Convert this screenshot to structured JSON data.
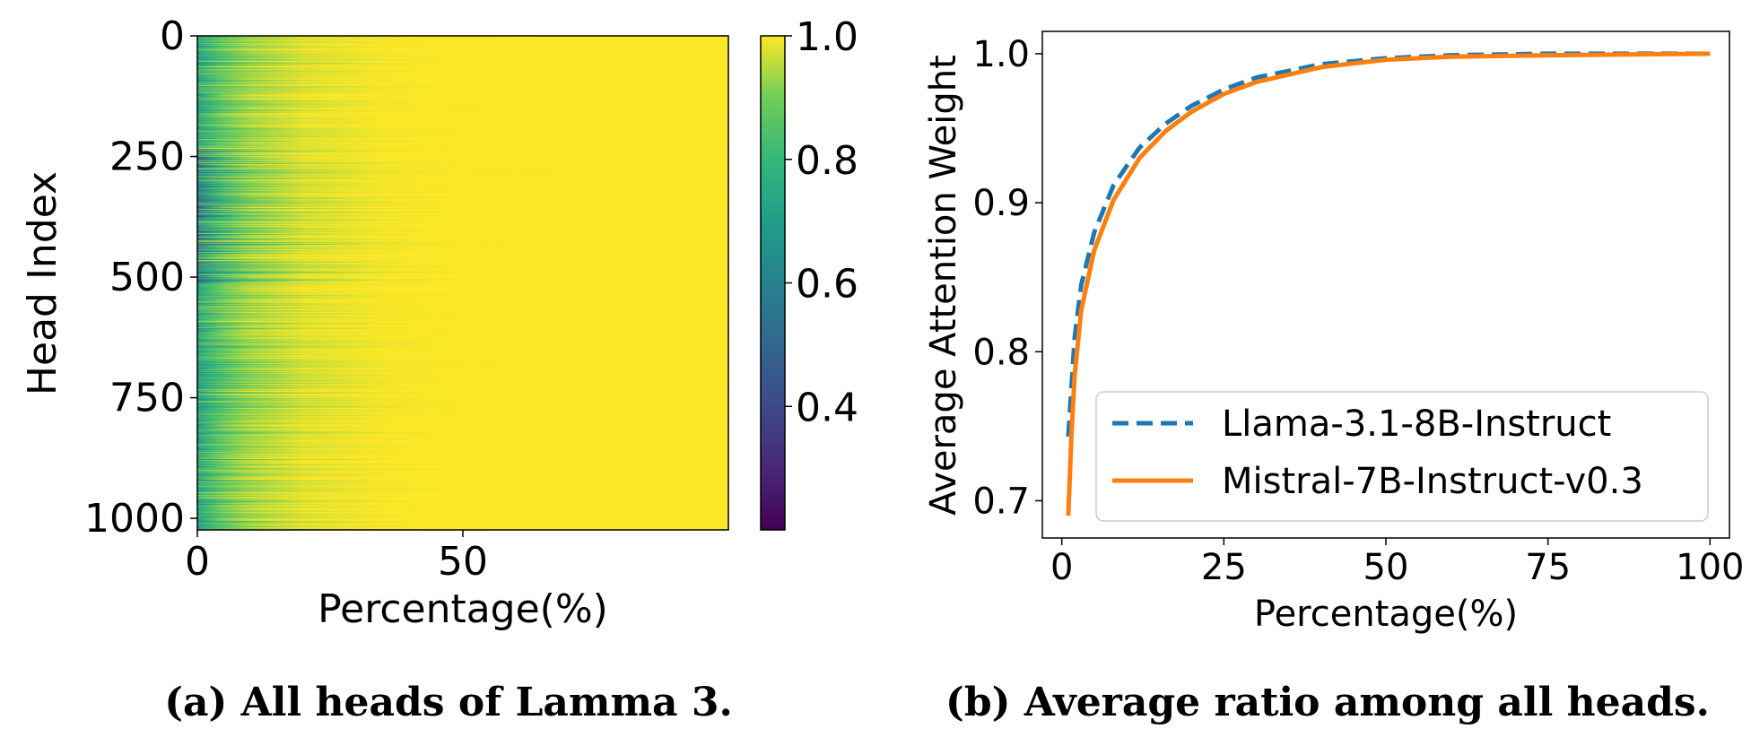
{
  "chart_data": [
    {
      "type": "heatmap",
      "caption": "(a) All heads of Lamma 3.",
      "title": "",
      "xlabel": "Percentage(%)",
      "ylabel": "Head Index",
      "xlim": [
        0,
        100
      ],
      "ylim": [
        1024,
        0
      ],
      "x_ticks": [
        0,
        50
      ],
      "y_ticks": [
        0,
        250,
        500,
        750,
        1000
      ],
      "rows": 1024,
      "colorbar": {
        "min": 0.2,
        "max": 1.0,
        "ticks": [
          "1.0",
          "0.8",
          "0.6",
          "0.4"
        ],
        "colormap": "viridis"
      },
      "head_profile": {
        "description_free_params": true,
        "typical_start_value": 0.72,
        "min_start_value": 0.35,
        "saturation_percentage": [
          8,
          40
        ]
      }
    },
    {
      "type": "line",
      "caption": "(b) Average ratio among all heads.",
      "title": "",
      "xlabel": "Percentage(%)",
      "ylabel": "Average Attention Weight",
      "xlim": [
        -3,
        103
      ],
      "ylim": [
        0.675,
        1.015
      ],
      "x_ticks": [
        "0",
        "25",
        "50",
        "75",
        "100"
      ],
      "y_ticks": [
        "1.0",
        "0.9",
        "0.8",
        "0.7"
      ],
      "legend_position": "lower-right",
      "series": [
        {
          "name": "Llama-3.1-8B-Instruct",
          "style": "dashed",
          "color": "#1f77b4",
          "x": [
            1,
            2,
            3,
            5,
            8,
            12,
            16,
            20,
            25,
            30,
            40,
            50,
            60,
            75,
            100
          ],
          "y": [
            0.743,
            0.81,
            0.845,
            0.88,
            0.912,
            0.937,
            0.953,
            0.965,
            0.976,
            0.984,
            0.993,
            0.997,
            0.999,
            1.0,
            1.0
          ]
        },
        {
          "name": "Mistral-7B-Instruct-v0.3",
          "style": "solid",
          "color": "#ff7f0e",
          "x": [
            1,
            1.5,
            2,
            3,
            5,
            8,
            12,
            16,
            20,
            25,
            30,
            40,
            50,
            60,
            75,
            100
          ],
          "y": [
            0.69,
            0.745,
            0.785,
            0.828,
            0.868,
            0.902,
            0.93,
            0.948,
            0.961,
            0.973,
            0.981,
            0.991,
            0.996,
            0.998,
            0.999,
            1.0
          ]
        }
      ]
    }
  ]
}
